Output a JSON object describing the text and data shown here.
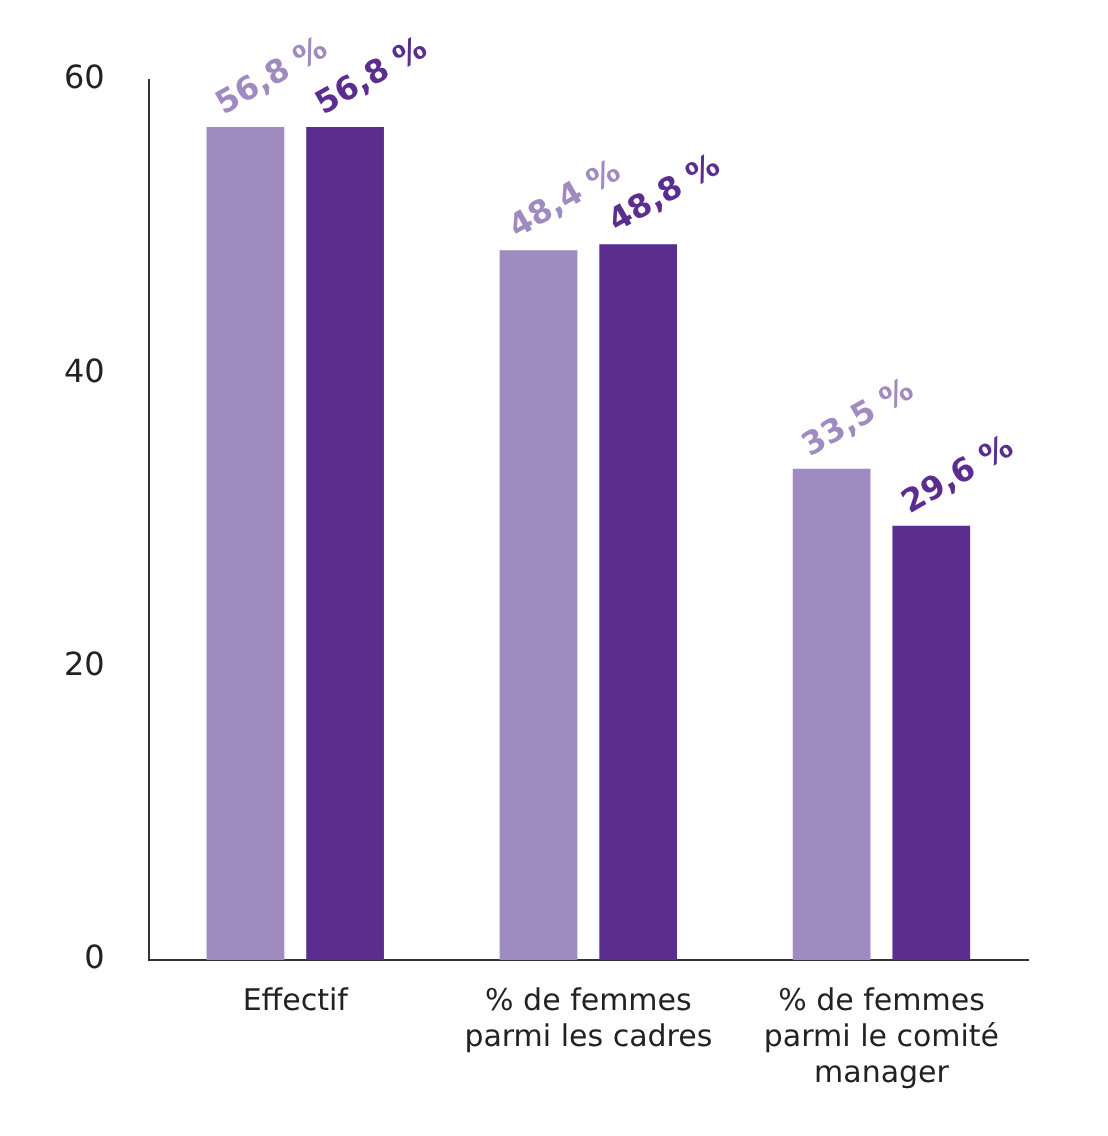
{
  "chart_data": {
    "type": "bar",
    "categories": [
      "Effectif",
      "% de femmes parmi les cadres",
      "% de femmes parmi le comité manager"
    ],
    "series": [
      {
        "color": "#a08bc0",
        "values": [
          56.8,
          48.4,
          33.5
        ],
        "value_labels": [
          "56,8 %",
          "48,4 %",
          "33,5 %"
        ]
      },
      {
        "color": "#5b2d8e",
        "values": [
          56.8,
          48.8,
          29.6
        ],
        "value_labels": [
          "56,8 %",
          "48,8 %",
          "29,6 %"
        ]
      }
    ],
    "ylim": [
      0,
      60
    ],
    "yticks": [
      0,
      20,
      40,
      60
    ],
    "grid": false,
    "legend": false
  }
}
